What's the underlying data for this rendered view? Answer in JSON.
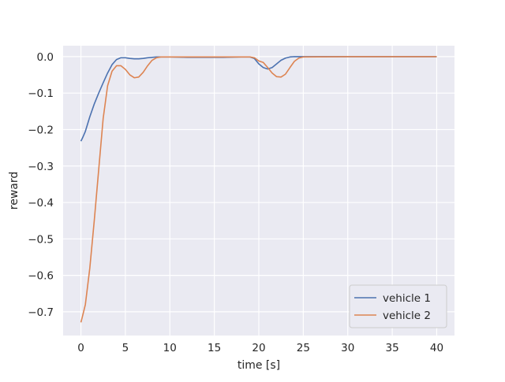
{
  "chart_data": {
    "type": "line",
    "title": "",
    "xlabel": "time [s]",
    "ylabel": "reward",
    "xlim": [
      -2.0,
      42.0
    ],
    "ylim": [
      -0.765,
      0.03
    ],
    "xticks": [
      0,
      5,
      10,
      15,
      20,
      25,
      30,
      35,
      40
    ],
    "yticks": [
      0.0,
      -0.1,
      -0.2,
      -0.3,
      -0.4,
      -0.5,
      -0.6,
      -0.7
    ],
    "xtick_labels": [
      "0",
      "5",
      "10",
      "15",
      "20",
      "25",
      "30",
      "35",
      "40"
    ],
    "ytick_labels": [
      "0.0",
      "−0.1",
      "−0.2",
      "−0.3",
      "−0.4",
      "−0.5",
      "−0.6",
      "−0.7"
    ],
    "grid": true,
    "legend_position": "lower-right",
    "background_color": "#eaeaf2",
    "series": [
      {
        "name": "vehicle 1",
        "color": "#4c72b0",
        "x": [
          0,
          0.2,
          0.5,
          1,
          1.5,
          2,
          2.5,
          3,
          3.5,
          4,
          4.5,
          5,
          5.5,
          6,
          6.5,
          7,
          7.5,
          8,
          8.5,
          9,
          10,
          12,
          14,
          16,
          18,
          19,
          19.5,
          20,
          20.5,
          21,
          21.5,
          22,
          22.5,
          23,
          23.5,
          24,
          25,
          30,
          35,
          40
        ],
        "y": [
          -0.232,
          -0.222,
          -0.205,
          -0.165,
          -0.13,
          -0.1,
          -0.072,
          -0.045,
          -0.022,
          -0.008,
          -0.003,
          -0.003,
          -0.005,
          -0.006,
          -0.006,
          -0.005,
          -0.003,
          -0.002,
          -0.001,
          -0.001,
          -0.001,
          -0.002,
          -0.002,
          -0.002,
          -0.001,
          -0.001,
          -0.005,
          -0.02,
          -0.03,
          -0.034,
          -0.03,
          -0.02,
          -0.01,
          -0.004,
          -0.001,
          0.0,
          0.0,
          0.0,
          0.0,
          0.0
        ]
      },
      {
        "name": "vehicle 2",
        "color": "#dd8452",
        "x": [
          0,
          0.2,
          0.5,
          1,
          1.5,
          2,
          2.5,
          3,
          3.5,
          4,
          4.5,
          5,
          5.5,
          6,
          6.5,
          7,
          7.5,
          8,
          8.5,
          9,
          9.5,
          10,
          12,
          14,
          16,
          18,
          19,
          19.5,
          20,
          20.5,
          21,
          21.5,
          22,
          22.5,
          23,
          23.5,
          24,
          24.5,
          25,
          30,
          35,
          40
        ],
        "y": [
          -0.729,
          -0.71,
          -0.68,
          -0.58,
          -0.45,
          -0.31,
          -0.17,
          -0.08,
          -0.04,
          -0.025,
          -0.025,
          -0.035,
          -0.05,
          -0.058,
          -0.056,
          -0.043,
          -0.025,
          -0.01,
          -0.003,
          -0.001,
          -0.001,
          -0.001,
          -0.001,
          -0.001,
          -0.001,
          -0.001,
          -0.001,
          -0.003,
          -0.012,
          -0.016,
          -0.03,
          -0.045,
          -0.055,
          -0.056,
          -0.048,
          -0.03,
          -0.013,
          -0.004,
          -0.001,
          0.0,
          0.0,
          0.0
        ]
      }
    ]
  }
}
